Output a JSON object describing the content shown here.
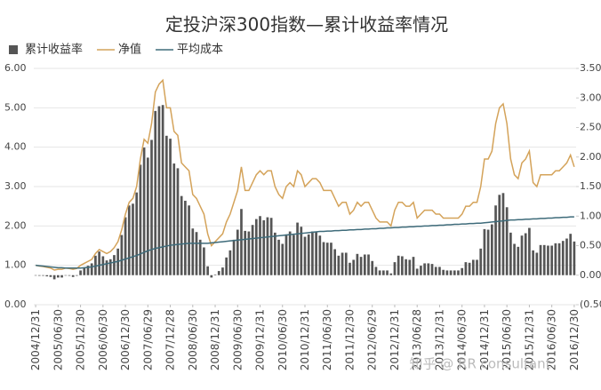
{
  "chart_data": {
    "type": "bar",
    "title": "定投沪深300指数—累计收益率情况",
    "watermark": "知乎 @ RR consultant",
    "categories": [
      "2004/12/31",
      null,
      null,
      null,
      null,
      null,
      "2005/06/30",
      null,
      null,
      null,
      null,
      null,
      "2005/12/30",
      null,
      null,
      null,
      null,
      null,
      "2006/06/30",
      null,
      null,
      null,
      null,
      null,
      "2006/12/30",
      null,
      null,
      null,
      null,
      null,
      "2007/06/29",
      null,
      null,
      null,
      null,
      null,
      "2007/12/28",
      null,
      null,
      null,
      null,
      null,
      "2008/06/30",
      null,
      null,
      null,
      null,
      null,
      "2008/12/31",
      null,
      null,
      null,
      null,
      null,
      "2009/06/30",
      null,
      null,
      null,
      null,
      null,
      "2009/12/31",
      null,
      null,
      null,
      null,
      null,
      "2010/06/30",
      null,
      null,
      null,
      null,
      null,
      "2010/12/31",
      null,
      null,
      null,
      null,
      null,
      "2011/06/30",
      null,
      null,
      null,
      null,
      null,
      "2011/12/30",
      null,
      null,
      null,
      null,
      null,
      "2012/06/29",
      null,
      null,
      null,
      null,
      null,
      "2012/12/31",
      null,
      null,
      null,
      null,
      null,
      "2013/06/28",
      null,
      null,
      null,
      null,
      null,
      "2013/12/31",
      null,
      null,
      null,
      null,
      null,
      "2014/06/30",
      null,
      null,
      null,
      null,
      null,
      "2014/12/31",
      null,
      null,
      null,
      null,
      null,
      "2015/06/30",
      null,
      null,
      null,
      null,
      null,
      "2015/12/31",
      null,
      null,
      null,
      null,
      null,
      "2016/06/30",
      null,
      null,
      null,
      null,
      null,
      "2016/12/30"
    ],
    "series": [
      {
        "name": "累计收益率",
        "type": "bar",
        "axis": "y2",
        "color": "#555555",
        "values": [
          0.0,
          -0.01,
          -0.01,
          -0.02,
          -0.03,
          -0.07,
          -0.04,
          -0.04,
          0.0,
          -0.01,
          -0.03,
          -0.01,
          0.08,
          0.12,
          0.16,
          0.2,
          0.33,
          0.4,
          0.32,
          0.25,
          0.27,
          0.34,
          0.45,
          0.68,
          0.98,
          1.18,
          1.21,
          1.4,
          1.87,
          2.16,
          1.99,
          2.29,
          2.78,
          2.86,
          2.88,
          2.36,
          2.31,
          1.89,
          1.81,
          1.34,
          1.26,
          1.18,
          0.79,
          0.73,
          0.6,
          0.47,
          0.15,
          -0.04,
          0.01,
          0.07,
          0.13,
          0.3,
          0.42,
          0.6,
          0.77,
          1.12,
          0.75,
          0.74,
          0.85,
          0.95,
          1.0,
          0.93,
          0.98,
          0.97,
          0.72,
          0.6,
          0.53,
          0.69,
          0.74,
          0.68,
          0.89,
          0.82,
          0.65,
          0.69,
          0.74,
          0.73,
          0.67,
          0.56,
          0.55,
          0.55,
          0.44,
          0.33,
          0.38,
          0.38,
          0.21,
          0.26,
          0.36,
          0.31,
          0.35,
          0.35,
          0.24,
          0.14,
          0.08,
          0.08,
          0.08,
          0.03,
          0.22,
          0.33,
          0.32,
          0.27,
          0.26,
          0.31,
          0.11,
          0.16,
          0.2,
          0.2,
          0.19,
          0.14,
          0.14,
          0.09,
          0.08,
          0.08,
          0.08,
          0.08,
          0.12,
          0.22,
          0.21,
          0.26,
          0.26,
          0.45,
          0.78,
          0.77,
          0.86,
          1.18,
          1.36,
          1.39,
          1.15,
          0.72,
          0.53,
          0.48,
          0.67,
          0.71,
          0.8,
          0.42,
          0.38,
          0.51,
          0.51,
          0.5,
          0.5,
          0.54,
          0.54,
          0.58,
          0.62,
          0.7,
          0.57
        ]
      },
      {
        "name": "净值",
        "type": "line",
        "color": "#d4a35a",
        "values": [
          1.0,
          0.98,
          0.97,
          0.95,
          0.93,
          0.88,
          0.9,
          0.9,
          0.93,
          0.92,
          0.9,
          0.92,
          1.0,
          1.05,
          1.1,
          1.15,
          1.3,
          1.4,
          1.35,
          1.3,
          1.35,
          1.45,
          1.6,
          1.9,
          2.3,
          2.6,
          2.7,
          3.0,
          3.7,
          4.2,
          4.1,
          4.6,
          5.4,
          5.6,
          5.7,
          5.0,
          5.0,
          4.4,
          4.3,
          3.6,
          3.5,
          3.4,
          2.8,
          2.7,
          2.5,
          2.3,
          1.8,
          1.5,
          1.6,
          1.7,
          1.8,
          2.1,
          2.3,
          2.6,
          2.9,
          3.5,
          2.9,
          2.9,
          3.1,
          3.3,
          3.4,
          3.3,
          3.4,
          3.4,
          3.0,
          2.8,
          2.7,
          3.0,
          3.1,
          3.0,
          3.4,
          3.3,
          3.0,
          3.1,
          3.2,
          3.2,
          3.1,
          2.9,
          2.9,
          2.9,
          2.7,
          2.5,
          2.6,
          2.6,
          2.3,
          2.4,
          2.6,
          2.5,
          2.6,
          2.6,
          2.4,
          2.2,
          2.1,
          2.1,
          2.1,
          2.0,
          2.4,
          2.6,
          2.6,
          2.5,
          2.5,
          2.6,
          2.2,
          2.3,
          2.4,
          2.4,
          2.4,
          2.3,
          2.3,
          2.2,
          2.2,
          2.2,
          2.2,
          2.2,
          2.3,
          2.5,
          2.5,
          2.6,
          2.6,
          3.0,
          3.7,
          3.7,
          3.9,
          4.6,
          5.0,
          5.1,
          4.6,
          3.7,
          3.3,
          3.2,
          3.6,
          3.7,
          3.9,
          3.1,
          3.0,
          3.3,
          3.3,
          3.3,
          3.3,
          3.4,
          3.4,
          3.5,
          3.6,
          3.8,
          3.5
        ]
      },
      {
        "name": "平均成本",
        "type": "line",
        "color": "#3e6b7a",
        "values": [
          1.0,
          0.99,
          0.98,
          0.97,
          0.96,
          0.95,
          0.94,
          0.94,
          0.93,
          0.93,
          0.93,
          0.93,
          0.93,
          0.94,
          0.95,
          0.96,
          0.98,
          1.0,
          1.02,
          1.04,
          1.06,
          1.08,
          1.1,
          1.13,
          1.16,
          1.19,
          1.22,
          1.25,
          1.29,
          1.33,
          1.37,
          1.4,
          1.43,
          1.45,
          1.47,
          1.49,
          1.51,
          1.52,
          1.53,
          1.54,
          1.55,
          1.56,
          1.56,
          1.56,
          1.56,
          1.56,
          1.56,
          1.57,
          1.58,
          1.59,
          1.6,
          1.61,
          1.62,
          1.63,
          1.64,
          1.65,
          1.66,
          1.67,
          1.68,
          1.69,
          1.7,
          1.71,
          1.72,
          1.73,
          1.74,
          1.75,
          1.76,
          1.77,
          1.78,
          1.79,
          1.8,
          1.81,
          1.82,
          1.83,
          1.84,
          1.85,
          1.86,
          1.86,
          1.87,
          1.87,
          1.88,
          1.88,
          1.89,
          1.89,
          1.9,
          1.9,
          1.91,
          1.91,
          1.92,
          1.92,
          1.93,
          1.93,
          1.94,
          1.94,
          1.95,
          1.95,
          1.96,
          1.96,
          1.97,
          1.97,
          1.98,
          1.98,
          1.99,
          1.99,
          2.0,
          2.0,
          2.01,
          2.01,
          2.02,
          2.02,
          2.03,
          2.03,
          2.04,
          2.04,
          2.05,
          2.05,
          2.06,
          2.06,
          2.07,
          2.07,
          2.08,
          2.09,
          2.1,
          2.11,
          2.12,
          2.13,
          2.14,
          2.15,
          2.15,
          2.16,
          2.16,
          2.17,
          2.17,
          2.18,
          2.18,
          2.19,
          2.19,
          2.2,
          2.2,
          2.21,
          2.21,
          2.22,
          2.22,
          2.23,
          2.23
        ]
      }
    ],
    "ylim": [
      0,
      6
    ],
    "yticks": [
      {
        "value": 0,
        "label": "0.00"
      },
      {
        "value": 1,
        "label": "1.00"
      },
      {
        "value": 2,
        "label": "2.00"
      },
      {
        "value": 3,
        "label": "3.00"
      },
      {
        "value": 4,
        "label": "4.00"
      },
      {
        "value": 5,
        "label": "5.00"
      },
      {
        "value": 6,
        "label": "6.00"
      }
    ],
    "y2lim": [
      -0.5,
      3.5
    ],
    "y2ticks": [
      {
        "value": -0.5,
        "label": "(0.50"
      },
      {
        "value": 0,
        "label": "0.00"
      },
      {
        "value": 0.5,
        "label": "0.50"
      },
      {
        "value": 1,
        "label": "1.00"
      },
      {
        "value": 1.5,
        "label": "1.50"
      },
      {
        "value": 2,
        "label": "2.00"
      },
      {
        "value": 2.5,
        "label": "2.50"
      },
      {
        "value": 3,
        "label": "3.00"
      },
      {
        "value": 3.5,
        "label": "3.50"
      }
    ],
    "grid": true
  }
}
